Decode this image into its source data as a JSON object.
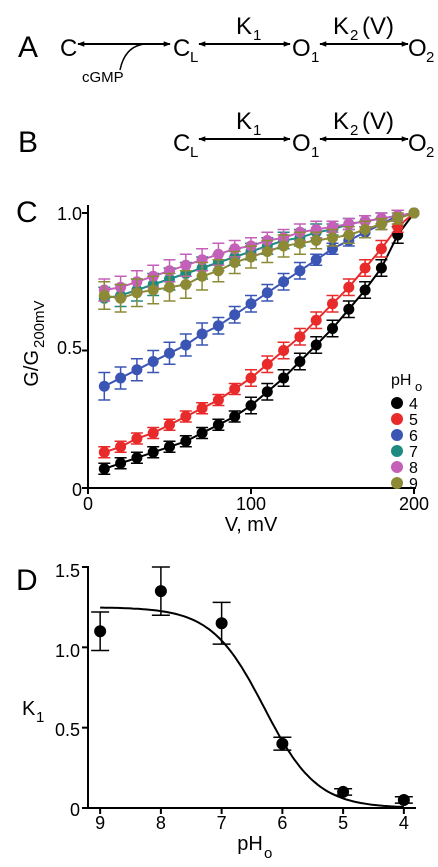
{
  "panels": {
    "A": {
      "letter": "A",
      "states": {
        "c": "C",
        "cl": "C",
        "cl_sub": "L",
        "o1": "O",
        "o1_sub": "1",
        "o2": "O",
        "o2_sub": "2"
      },
      "k1": "K",
      "k1_sub": "1",
      "k2": "K",
      "k2_sub": "2",
      "k2_suffix": "(V)",
      "cgmp": "cGMP"
    },
    "B": {
      "letter": "B",
      "states": {
        "cl": "C",
        "cl_sub": "L",
        "o1": "O",
        "o1_sub": "1",
        "o2": "O",
        "o2_sub": "2"
      },
      "k1": "K",
      "k1_sub": "1",
      "k2": "K",
      "k2_sub": "2",
      "k2_suffix": "(V)"
    },
    "C": {
      "letter": "C"
    },
    "D": {
      "letter": "D"
    }
  },
  "chart_data": [
    {
      "panel": "C",
      "type": "scatter",
      "xlabel": "V, mV",
      "ylabel": "G/G",
      "ylabel_sub": "200mV",
      "xlim": [
        0,
        200
      ],
      "ylim": [
        0,
        1.0
      ],
      "xticks": [
        "0",
        "100",
        "200"
      ],
      "yticks": [
        "0",
        "0.5",
        "1.0"
      ],
      "legend_title": "pH",
      "legend_title_sub": "o",
      "legend_position": "right",
      "x": [
        10,
        20,
        30,
        40,
        50,
        60,
        70,
        80,
        90,
        100,
        110,
        120,
        130,
        140,
        150,
        160,
        170,
        180,
        190,
        200
      ],
      "series": [
        {
          "name": "4",
          "color": "#000000",
          "values": [
            0.07,
            0.09,
            0.11,
            0.13,
            0.15,
            0.17,
            0.2,
            0.23,
            0.26,
            0.3,
            0.35,
            0.4,
            0.46,
            0.52,
            0.58,
            0.65,
            0.72,
            0.8,
            0.92,
            1.0
          ],
          "errors": [
            0.02,
            0.02,
            0.02,
            0.02,
            0.02,
            0.02,
            0.02,
            0.02,
            0.02,
            0.03,
            0.03,
            0.03,
            0.03,
            0.03,
            0.03,
            0.03,
            0.03,
            0.03,
            0.03,
            0
          ]
        },
        {
          "name": "5",
          "color": "#e82a2a",
          "values": [
            0.13,
            0.15,
            0.18,
            0.2,
            0.23,
            0.26,
            0.29,
            0.32,
            0.36,
            0.4,
            0.45,
            0.5,
            0.55,
            0.61,
            0.67,
            0.73,
            0.8,
            0.87,
            0.95,
            1.0
          ],
          "errors": [
            0.02,
            0.02,
            0.02,
            0.02,
            0.02,
            0.02,
            0.02,
            0.02,
            0.02,
            0.03,
            0.03,
            0.03,
            0.03,
            0.03,
            0.03,
            0.03,
            0.03,
            0.03,
            0.02,
            0
          ]
        },
        {
          "name": "6",
          "color": "#3b55b5",
          "values": [
            0.37,
            0.4,
            0.43,
            0.46,
            0.49,
            0.52,
            0.56,
            0.59,
            0.63,
            0.67,
            0.71,
            0.75,
            0.79,
            0.83,
            0.87,
            0.9,
            0.93,
            0.96,
            0.99,
            1.0
          ],
          "errors": [
            0.05,
            0.04,
            0.04,
            0.04,
            0.04,
            0.04,
            0.04,
            0.03,
            0.03,
            0.03,
            0.03,
            0.03,
            0.03,
            0.02,
            0.02,
            0.02,
            0.02,
            0.02,
            0.02,
            0
          ]
        },
        {
          "name": "7",
          "color": "#1f8a80",
          "values": [
            0.69,
            0.7,
            0.72,
            0.74,
            0.76,
            0.78,
            0.8,
            0.82,
            0.84,
            0.86,
            0.88,
            0.9,
            0.91,
            0.93,
            0.94,
            0.96,
            0.97,
            0.98,
            0.99,
            1.0
          ],
          "errors": [
            0.04,
            0.04,
            0.04,
            0.04,
            0.04,
            0.04,
            0.04,
            0.03,
            0.03,
            0.03,
            0.03,
            0.03,
            0.03,
            0.03,
            0.02,
            0.02,
            0.02,
            0.02,
            0.02,
            0
          ]
        },
        {
          "name": "8",
          "color": "#c560b8",
          "values": [
            0.72,
            0.73,
            0.75,
            0.77,
            0.79,
            0.81,
            0.83,
            0.85,
            0.87,
            0.88,
            0.9,
            0.91,
            0.93,
            0.94,
            0.95,
            0.96,
            0.97,
            0.98,
            0.99,
            1.0
          ],
          "errors": [
            0.04,
            0.04,
            0.04,
            0.04,
            0.04,
            0.04,
            0.04,
            0.04,
            0.03,
            0.03,
            0.03,
            0.03,
            0.03,
            0.03,
            0.02,
            0.02,
            0.02,
            0.02,
            0.02,
            0
          ]
        },
        {
          "name": "9",
          "color": "#8c8a35",
          "values": [
            0.7,
            0.69,
            0.71,
            0.72,
            0.73,
            0.74,
            0.77,
            0.79,
            0.82,
            0.84,
            0.86,
            0.88,
            0.89,
            0.9,
            0.91,
            0.92,
            0.94,
            0.96,
            0.98,
            1.0
          ],
          "errors": [
            0.05,
            0.05,
            0.05,
            0.05,
            0.05,
            0.05,
            0.05,
            0.04,
            0.04,
            0.04,
            0.04,
            0.04,
            0.04,
            0.03,
            0.03,
            0.03,
            0.03,
            0.02,
            0.02,
            0
          ]
        }
      ]
    },
    {
      "panel": "D",
      "type": "scatter",
      "xlabel": "pH",
      "xlabel_sub": "o",
      "ylabel": "K",
      "ylabel_sub": "1",
      "xlim": [
        9.2,
        3.8
      ],
      "ylim": [
        0,
        1.5
      ],
      "xticks": [
        "9",
        "8",
        "7",
        "6",
        "5",
        "4"
      ],
      "yticks": [
        "0",
        "0.5",
        "1.0",
        "1.5"
      ],
      "x": [
        9,
        8,
        7,
        6,
        5,
        4
      ],
      "values": [
        1.1,
        1.35,
        1.15,
        0.4,
        0.1,
        0.05
      ],
      "errors": [
        0.12,
        0.15,
        0.13,
        0.04,
        0.02,
        0.02
      ],
      "fit": {
        "type": "sigmoid",
        "max": 1.25,
        "pKa": 6.3
      },
      "color": "#000000"
    }
  ]
}
